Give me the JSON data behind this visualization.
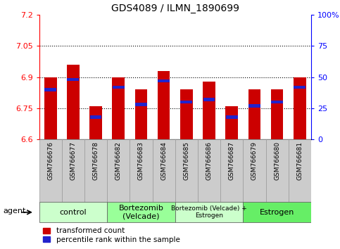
{
  "title": "GDS4089 / ILMN_1890699",
  "samples": [
    "GSM766676",
    "GSM766677",
    "GSM766678",
    "GSM766682",
    "GSM766683",
    "GSM766684",
    "GSM766685",
    "GSM766686",
    "GSM766687",
    "GSM766679",
    "GSM766680",
    "GSM766681"
  ],
  "transformed_counts": [
    6.9,
    6.96,
    6.76,
    6.9,
    6.84,
    6.93,
    6.84,
    6.88,
    6.76,
    6.84,
    6.84,
    6.9
  ],
  "percentile_ranks": [
    40,
    48,
    18,
    42,
    28,
    47,
    30,
    32,
    18,
    27,
    30,
    42
  ],
  "y_min": 6.6,
  "y_max": 7.2,
  "y_ticks": [
    6.6,
    6.75,
    6.9,
    7.05,
    7.2
  ],
  "y_right_ticks": [
    0,
    25,
    50,
    75,
    100
  ],
  "bar_color": "#cc0000",
  "blue_color": "#2222cc",
  "bar_width": 0.55,
  "groups": [
    {
      "label": "control",
      "start": 0,
      "end": 3,
      "color": "#ccffcc"
    },
    {
      "label": "Bortezomib\n(Velcade)",
      "start": 3,
      "end": 6,
      "color": "#99ff99"
    },
    {
      "label": "Bortezomib (Velcade) +\nEstrogen",
      "start": 6,
      "end": 9,
      "color": "#ccffcc"
    },
    {
      "label": "Estrogen",
      "start": 9,
      "end": 12,
      "color": "#66ee66"
    }
  ],
  "legend_red_label": "transformed count",
  "legend_blue_label": "percentile rank within the sample",
  "agent_label": "agent"
}
